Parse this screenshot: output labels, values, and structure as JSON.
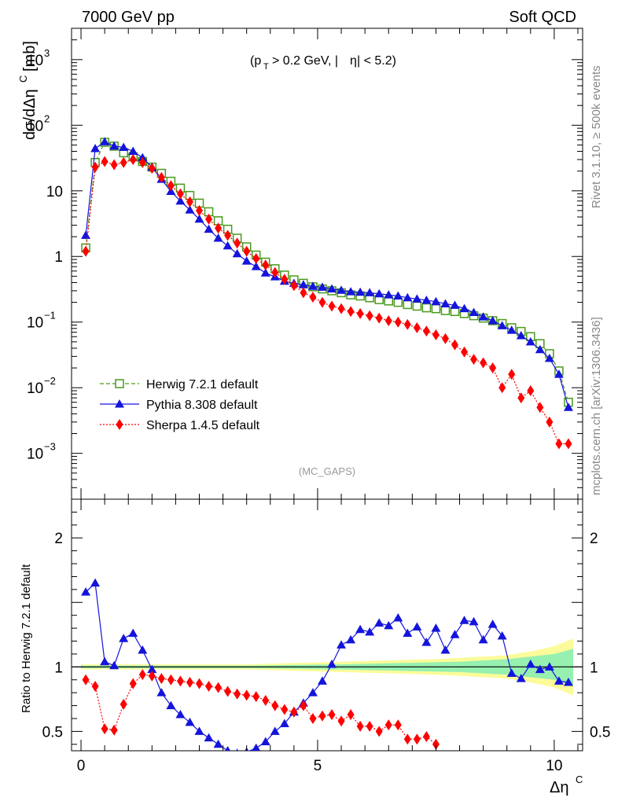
{
  "header": {
    "left": "7000 GeV pp",
    "right": "Soft QCD"
  },
  "side_labels": {
    "rivet": "Rivet 3.1.10, ≥ 500k events",
    "mcplots": "mcplots.cern.ch [arXiv:1306.3436]"
  },
  "chart_data": [
    {
      "type": "line",
      "panel": "main",
      "title": "",
      "cut_label": "(p_T > 0.2 GeV, |η| < 5.2)",
      "watermark": "(MC_GAPS)",
      "ylabel": "dσ/dΔη^C [mb]",
      "xlabel": "Δη^C",
      "xlim": [
        -0.2,
        10.6
      ],
      "ylim": [
        0.0002,
        3000
      ],
      "yscale": "log",
      "x_ticks": [
        "0",
        "5",
        "10"
      ],
      "y_ticks": [
        "10^-3",
        "10^-2",
        "10^-1",
        "1",
        "10",
        "10^2",
        "10^3"
      ],
      "legend_position": "lower-left",
      "series": [
        {
          "name": "Herwig 7.2.1 default",
          "color": "#4a9a1c",
          "line": "dashed",
          "marker": "open-square",
          "x": [
            0.1,
            0.3,
            0.5,
            0.7,
            0.9,
            1.1,
            1.3,
            1.5,
            1.7,
            1.9,
            2.1,
            2.3,
            2.5,
            2.7,
            2.9,
            3.1,
            3.3,
            3.5,
            3.7,
            3.9,
            4.1,
            4.3,
            4.5,
            4.7,
            4.9,
            5.1,
            5.3,
            5.5,
            5.7,
            5.9,
            6.1,
            6.3,
            6.5,
            6.7,
            6.9,
            7.1,
            7.3,
            7.5,
            7.7,
            7.9,
            8.1,
            8.3,
            8.5,
            8.7,
            8.9,
            9.1,
            9.3,
            9.5,
            9.7,
            9.9,
            10.1,
            10.3
          ],
          "values": [
            1.35,
            27,
            55,
            48,
            38,
            33,
            28,
            23,
            18.5,
            14,
            11,
            8.5,
            6.5,
            4.8,
            3.5,
            2.6,
            1.9,
            1.4,
            1.05,
            0.82,
            0.65,
            0.52,
            0.44,
            0.39,
            0.345,
            0.32,
            0.3,
            0.28,
            0.26,
            0.25,
            0.235,
            0.22,
            0.21,
            0.2,
            0.185,
            0.175,
            0.165,
            0.16,
            0.15,
            0.145,
            0.135,
            0.125,
            0.115,
            0.105,
            0.095,
            0.082,
            0.072,
            0.06,
            0.047,
            0.033,
            0.018,
            0.006
          ]
        },
        {
          "name": "Pythia 8.308 default",
          "color": "#1414dc",
          "line": "solid",
          "marker": "filled-triangle",
          "x": [
            0.1,
            0.3,
            0.5,
            0.7,
            0.9,
            1.1,
            1.3,
            1.5,
            1.7,
            1.9,
            2.1,
            2.3,
            2.5,
            2.7,
            2.9,
            3.1,
            3.3,
            3.5,
            3.7,
            3.9,
            4.1,
            4.3,
            4.5,
            4.7,
            4.9,
            5.1,
            5.3,
            5.5,
            5.7,
            5.9,
            6.1,
            6.3,
            6.5,
            6.7,
            6.9,
            7.1,
            7.3,
            7.5,
            7.7,
            7.9,
            8.1,
            8.3,
            8.5,
            8.7,
            8.9,
            9.1,
            9.3,
            9.5,
            9.7,
            9.9,
            10.1,
            10.3
          ],
          "values": [
            2.1,
            44,
            56,
            48,
            46,
            40,
            32,
            23,
            15,
            9.8,
            7,
            5.1,
            3.7,
            2.6,
            1.9,
            1.45,
            1.1,
            0.85,
            0.7,
            0.56,
            0.49,
            0.42,
            0.39,
            0.37,
            0.35,
            0.34,
            0.32,
            0.305,
            0.29,
            0.285,
            0.28,
            0.27,
            0.26,
            0.25,
            0.235,
            0.225,
            0.215,
            0.205,
            0.19,
            0.18,
            0.16,
            0.14,
            0.12,
            0.105,
            0.088,
            0.075,
            0.062,
            0.05,
            0.038,
            0.028,
            0.016,
            0.005
          ]
        },
        {
          "name": "Sherpa 1.4.5 default",
          "color": "#ff0000",
          "line": "dotted",
          "marker": "filled-diamond",
          "x": [
            0.1,
            0.3,
            0.5,
            0.7,
            0.9,
            1.1,
            1.3,
            1.5,
            1.7,
            1.9,
            2.1,
            2.3,
            2.5,
            2.7,
            2.9,
            3.1,
            3.3,
            3.5,
            3.7,
            3.9,
            4.1,
            4.3,
            4.5,
            4.7,
            4.9,
            5.1,
            5.3,
            5.5,
            5.7,
            5.9,
            6.1,
            6.3,
            6.5,
            6.7,
            6.9,
            7.1,
            7.3,
            7.5,
            7.7,
            7.9,
            8.1,
            8.3,
            8.5,
            8.7,
            8.9,
            9.1,
            9.3,
            9.5,
            9.7,
            9.9,
            10.1,
            10.3
          ],
          "values": [
            1.2,
            23,
            28,
            25,
            27,
            30,
            27,
            22,
            16,
            12,
            9,
            6.8,
            5,
            3.7,
            2.7,
            2.1,
            1.6,
            1.2,
            0.93,
            0.74,
            0.57,
            0.45,
            0.36,
            0.28,
            0.24,
            0.2,
            0.175,
            0.16,
            0.145,
            0.135,
            0.125,
            0.115,
            0.105,
            0.1,
            0.092,
            0.082,
            0.073,
            0.064,
            0.056,
            0.045,
            0.035,
            0.027,
            0.024,
            0.02,
            0.01,
            0.016,
            0.007,
            0.009,
            0.005,
            0.003,
            0.0014,
            0.0014
          ]
        }
      ]
    },
    {
      "type": "line",
      "panel": "ratio",
      "title": "",
      "ylabel": "Ratio to Herwig 7.2.1 default",
      "xlabel": "Δη^C",
      "xlim": [
        -0.2,
        10.6
      ],
      "ylim": [
        0.35,
        2.3
      ],
      "x_ticks": [
        "0",
        "5",
        "10"
      ],
      "y_ticks": [
        "0.5",
        "1",
        "2"
      ],
      "reference_line": 1,
      "band_x": [
        0,
        0.5,
        1,
        1.5,
        2,
        2.5,
        3,
        3.5,
        4,
        4.5,
        5,
        5.5,
        6,
        6.5,
        7,
        7.5,
        8,
        8.5,
        9,
        9.5,
        10,
        10.4
      ],
      "band_outer": [
        0.02,
        0.02,
        0.02,
        0.02,
        0.02,
        0.02,
        0.02,
        0.02,
        0.025,
        0.03,
        0.035,
        0.04,
        0.045,
        0.05,
        0.055,
        0.06,
        0.07,
        0.08,
        0.09,
        0.12,
        0.16,
        0.22
      ],
      "band_inner": [
        0.01,
        0.01,
        0.01,
        0.01,
        0.01,
        0.01,
        0.01,
        0.01,
        0.012,
        0.015,
        0.018,
        0.02,
        0.024,
        0.028,
        0.032,
        0.036,
        0.04,
        0.05,
        0.06,
        0.08,
        0.1,
        0.14
      ],
      "series": [
        {
          "name": "Pythia 8.308 default",
          "color": "#1414dc",
          "marker": "filled-triangle",
          "x": [
            0.1,
            0.3,
            0.5,
            0.7,
            0.9,
            1.1,
            1.3,
            1.5,
            1.7,
            1.9,
            2.1,
            2.3,
            2.5,
            2.7,
            2.9,
            3.1,
            3.3,
            3.5,
            3.7,
            3.9,
            4.1,
            4.3,
            4.5,
            4.7,
            4.9,
            5.1,
            5.3,
            5.5,
            5.7,
            5.9,
            6.1,
            6.3,
            6.5,
            6.7,
            6.9,
            7.1,
            7.3,
            7.5,
            7.7,
            7.9,
            8.1,
            8.3,
            8.5,
            8.7,
            8.9,
            9.1,
            9.3,
            9.5,
            9.7,
            9.9,
            10.1,
            10.3
          ],
          "values": [
            1.58,
            1.65,
            1.04,
            1.01,
            1.22,
            1.26,
            1.13,
            0.98,
            0.8,
            0.7,
            0.63,
            0.57,
            0.5,
            0.45,
            0.4,
            0.35,
            0.33,
            0.34,
            0.37,
            0.42,
            0.5,
            0.56,
            0.65,
            0.72,
            0.8,
            0.89,
            1.02,
            1.17,
            1.21,
            1.29,
            1.27,
            1.34,
            1.32,
            1.38,
            1.26,
            1.31,
            1.19,
            1.3,
            1.13,
            1.25,
            1.36,
            1.35,
            1.21,
            1.33,
            1.24,
            0.95,
            0.91,
            1.02,
            0.98,
            1.0,
            0.89,
            0.88
          ]
        },
        {
          "name": "Sherpa 1.4.5 default",
          "color": "#ff0000",
          "marker": "filled-diamond",
          "x": [
            0.1,
            0.3,
            0.5,
            0.7,
            0.9,
            1.1,
            1.3,
            1.5,
            1.7,
            1.9,
            2.1,
            2.3,
            2.5,
            2.7,
            2.9,
            3.1,
            3.3,
            3.5,
            3.7,
            3.9,
            4.1,
            4.3,
            4.5,
            4.7,
            4.9,
            5.1,
            5.3,
            5.5,
            5.7,
            5.9,
            6.1,
            6.3,
            6.5,
            6.7,
            6.9,
            7.1,
            7.3,
            7.5
          ],
          "values": [
            0.9,
            0.85,
            0.52,
            0.51,
            0.71,
            0.87,
            0.94,
            0.93,
            0.91,
            0.9,
            0.89,
            0.88,
            0.87,
            0.85,
            0.84,
            0.81,
            0.79,
            0.78,
            0.77,
            0.74,
            0.7,
            0.67,
            0.65,
            0.7,
            0.6,
            0.62,
            0.63,
            0.58,
            0.63,
            0.54,
            0.54,
            0.5,
            0.55,
            0.55,
            0.44,
            0.44,
            0.46,
            0.4
          ]
        }
      ]
    }
  ]
}
